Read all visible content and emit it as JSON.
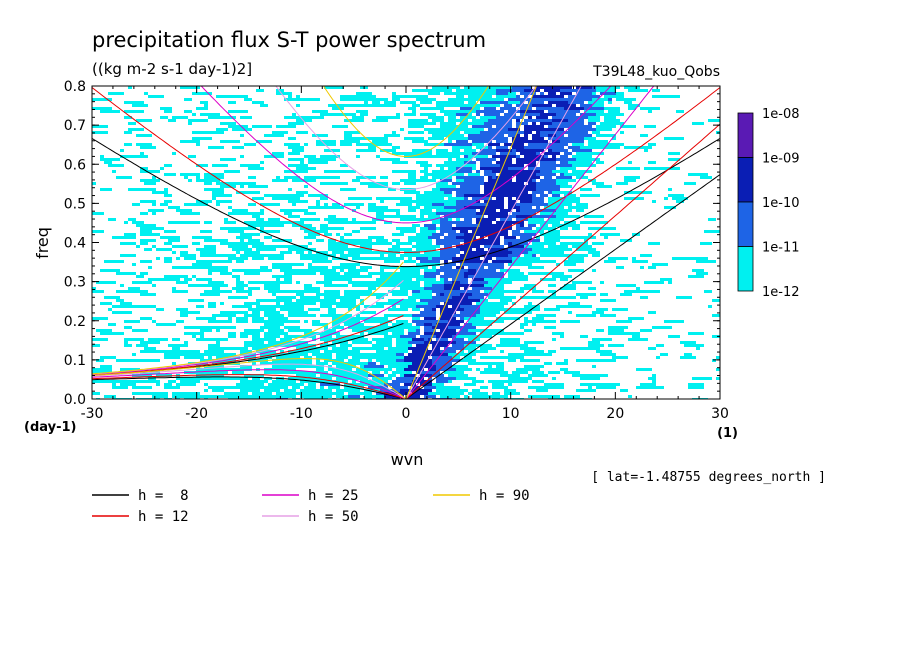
{
  "chart_data": {
    "type": "heatmap",
    "title": "precipitation flux S-T power spectrum",
    "subtitle": "((kg m-2 s-1 day-1)2]",
    "run_label": "T39L48_kuo_Qobs",
    "xlabel": "wvn",
    "ylabel": "freq",
    "x_unit": "(1)",
    "y_unit": "(day-1)",
    "xlim": [
      -30,
      30
    ],
    "ylim": [
      0,
      0.8
    ],
    "x_ticks": [
      -30,
      -20,
      -10,
      0,
      10,
      20,
      30
    ],
    "x_tick_labels": [
      "-30",
      "-20",
      "-10",
      "0",
      "10",
      "20",
      "30"
    ],
    "y_ticks": [
      0,
      0.1,
      0.2,
      0.3,
      0.4,
      0.5,
      0.6,
      0.7,
      0.8
    ],
    "y_tick_labels": [
      "0.0",
      "0.1",
      "0.2",
      "0.3",
      "0.4",
      "0.5",
      "0.6",
      "0.7",
      "0.8"
    ],
    "colorbar": {
      "levels": [
        "1e-08",
        "1e-09",
        "1e-10",
        "1e-11",
        "1e-12"
      ],
      "colors": [
        "#5a1ab4",
        "#0a1eb4",
        "#1e64e6",
        "#00f0f0"
      ]
    },
    "annotation": "[ lat=-1.48755 degrees_north ]",
    "dispersion_curves": [
      {
        "label": "h =  8",
        "h": 8,
        "color": "#000000"
      },
      {
        "label": "h = 12",
        "h": 12,
        "color": "#e60000"
      },
      {
        "label": "h = 25",
        "h": 25,
        "color": "#dc00c8"
      },
      {
        "label": "h = 50",
        "h": 50,
        "color": "#e6a0e6"
      },
      {
        "label": "h = 90",
        "h": 90,
        "color": "#f0c800"
      }
    ]
  }
}
